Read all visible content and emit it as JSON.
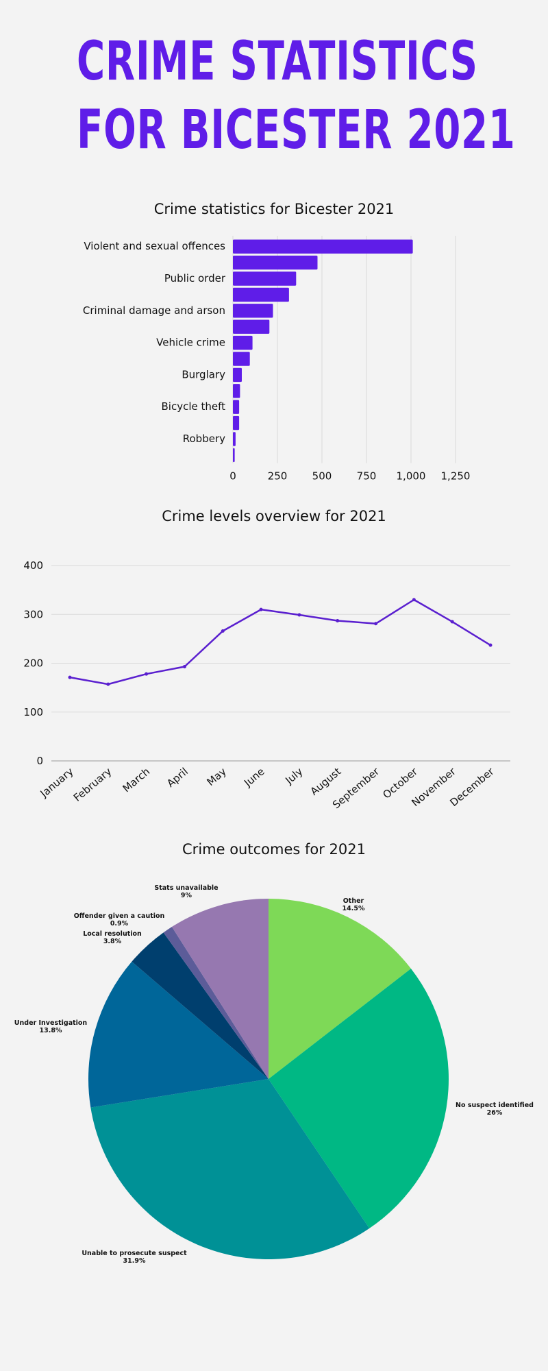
{
  "page": {
    "title_line1": "CRIME STATISTICS",
    "title_line2": "FOR BICESTER 2021"
  },
  "colors": {
    "accent": "#5f1de8",
    "line": "#5a1fcf",
    "grid": "#d9d9d9",
    "background": "#f3f3f3"
  },
  "chart_data": [
    {
      "type": "bar",
      "orientation": "horizontal",
      "title": "Crime statistics for Bicester 2021",
      "categories": [
        "Violent and sexual offences",
        "",
        "Public order",
        "",
        "Criminal damage and arson",
        "",
        "Vehicle crime",
        "",
        "Burglary",
        "",
        "Bicycle theft",
        "",
        "Robbery",
        ""
      ],
      "values": [
        1010,
        475,
        355,
        315,
        225,
        205,
        110,
        95,
        50,
        40,
        35,
        35,
        15,
        10
      ],
      "xlim": [
        0,
        1250
      ],
      "xticks": [
        "0",
        "250",
        "500",
        "750",
        "1,000",
        "1,250"
      ],
      "grid": true,
      "color": "#5f1de8"
    },
    {
      "type": "line",
      "title": "Crime levels overview for 2021",
      "categories": [
        "January",
        "February",
        "March",
        "April",
        "May",
        "June",
        "July",
        "August",
        "September",
        "October",
        "November",
        "December"
      ],
      "values": [
        171,
        157,
        178,
        193,
        266,
        310,
        299,
        287,
        281,
        330,
        285,
        237
      ],
      "ylim": [
        0,
        400
      ],
      "yticks": [
        "0",
        "100",
        "200",
        "300",
        "400"
      ],
      "grid": true,
      "color": "#5a1fcf"
    },
    {
      "type": "pie",
      "title": "Crime outcomes for 2021",
      "slices": [
        {
          "label": "Other",
          "value": 14.5,
          "text": "14.5%",
          "color": "#7ed957"
        },
        {
          "label": "No suspect identified",
          "value": 26,
          "text": "26%",
          "color": "#00b884"
        },
        {
          "label": "Unable to prosecute suspect",
          "value": 31.9,
          "text": "31.9%",
          "color": "#009196"
        },
        {
          "label": "Under Investigation",
          "value": 13.8,
          "text": "13.8%",
          "color": "#006699"
        },
        {
          "label": "Local resolution",
          "value": 3.8,
          "text": "3.8%",
          "color": "#003f6e"
        },
        {
          "label": "Offender given a caution",
          "value": 0.9,
          "text": "0.9%",
          "color": "#5c5c99"
        },
        {
          "label": "Stats unavailable",
          "value": 9,
          "text": "9%",
          "color": "#9678b0"
        }
      ]
    }
  ]
}
